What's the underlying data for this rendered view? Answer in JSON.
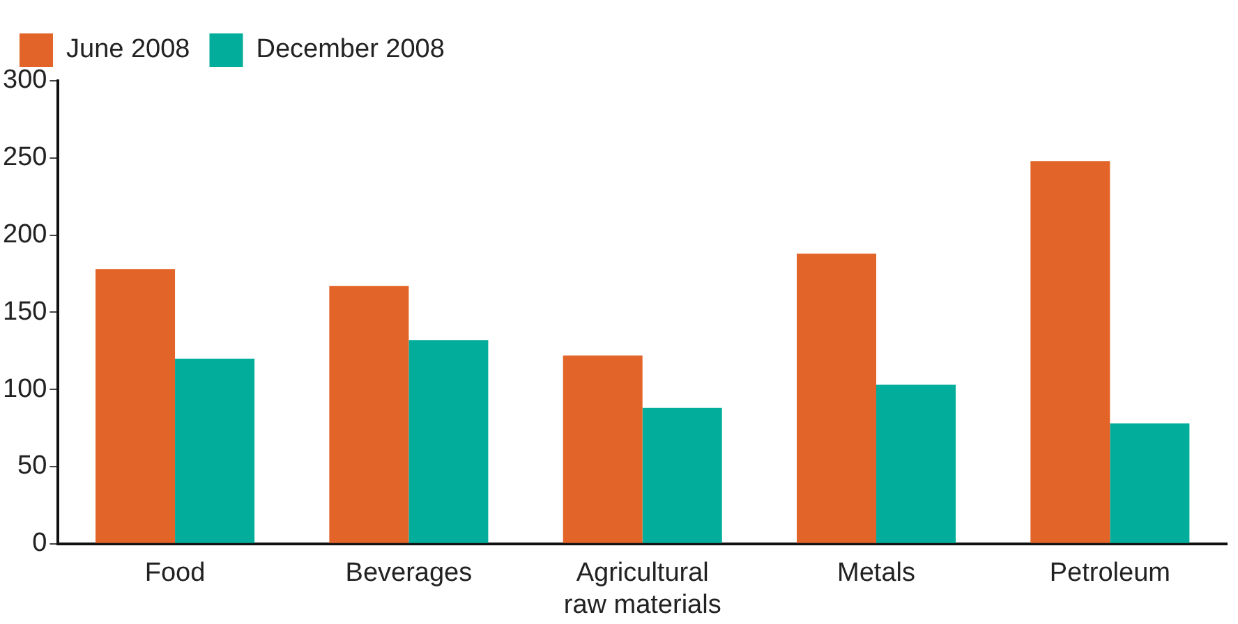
{
  "chart_data": {
    "type": "bar",
    "categories": [
      "Food",
      "Beverages",
      "Agricultural raw materials",
      "Metals",
      "Petroleum"
    ],
    "series": [
      {
        "name": "June 2008",
        "color": "#e26428",
        "values": [
          178,
          167,
          122,
          188,
          248
        ]
      },
      {
        "name": "December 2008",
        "color": "#02ad9c",
        "values": [
          120,
          132,
          88,
          103,
          78
        ]
      }
    ],
    "ylim": [
      0,
      300
    ],
    "yticks": [
      0,
      50,
      100,
      150,
      200,
      250,
      300
    ],
    "grid": false,
    "legend": "top left"
  }
}
